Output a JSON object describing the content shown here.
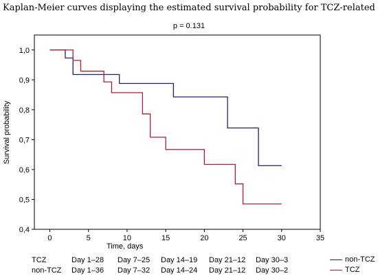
{
  "title": "Kaplan-Meier curves displaying the estimated survival probability for TCZ-related",
  "annotation": "p = 0.131",
  "chart_data": {
    "type": "line",
    "title": "Kaplan-Meier curves displaying the estimated survival probability for TCZ-related",
    "annotation": "p = 0.131",
    "xlabel": "Time, days",
    "ylabel": "Survival probability",
    "xlim": [
      -2,
      35
    ],
    "ylim": [
      0.4,
      1.05
    ],
    "x_ticks": [
      0,
      5,
      10,
      15,
      20,
      25,
      30,
      35
    ],
    "y_ticks": [
      0.4,
      0.5,
      0.6,
      0.7,
      0.8,
      0.9,
      1.0
    ],
    "x_tick_labels": [
      "0",
      "5",
      "10",
      "15",
      "20",
      "25",
      "30",
      "35"
    ],
    "y_tick_labels": [
      "0,4",
      "0,5",
      "0,6",
      "0,7",
      "0,8",
      "0,9",
      "1,0"
    ],
    "grid": false,
    "legend_position": "bottom-right",
    "series": [
      {
        "name": "non-TCZ",
        "color": "#1f1f6e",
        "x": [
          1,
          2,
          3,
          9,
          16,
          23,
          27,
          30
        ],
        "y": [
          1.0,
          0.973,
          0.918,
          0.888,
          0.843,
          0.739,
          0.613,
          0.613
        ]
      },
      {
        "name": "TCZ",
        "color": "#b01c2e",
        "x": [
          1,
          3,
          4,
          7,
          8,
          12,
          13,
          15,
          20,
          24,
          25,
          30
        ],
        "y": [
          1.0,
          0.965,
          0.929,
          0.893,
          0.857,
          0.786,
          0.708,
          0.667,
          0.617,
          0.552,
          0.485,
          0.485
        ]
      }
    ],
    "risk_table": [
      {
        "label": "TCZ",
        "cells": [
          "Day 1–28",
          "Day 7–25",
          "Day 14–19",
          "Day 21–12",
          "Day 30–3"
        ]
      },
      {
        "label": "non-TCZ",
        "cells": [
          "Day 1–36",
          "Day 7–32",
          "Day 14–24",
          "Day 21–12",
          "Day 30–2"
        ]
      }
    ]
  }
}
